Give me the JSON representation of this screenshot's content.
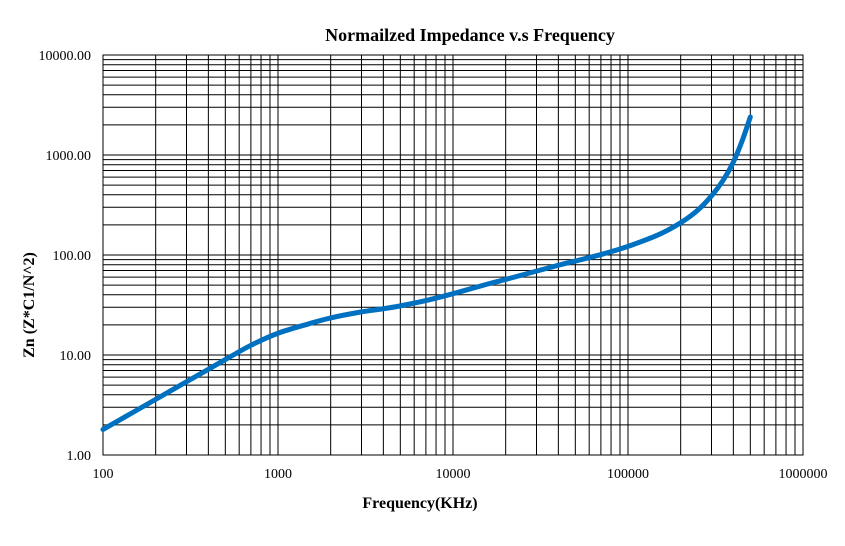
{
  "chart_data": {
    "type": "line",
    "title": "Normailzed Impedance v.s Frequency",
    "xlabel": "Frequency(KHz)",
    "ylabel": "Zn (Z*C1/N^2)",
    "x_scale": "log",
    "y_scale": "log",
    "xlim": [
      100,
      1000000
    ],
    "ylim": [
      1,
      10000
    ],
    "x_ticks": [
      "100",
      "1000",
      "10000",
      "100000",
      "1000000"
    ],
    "y_ticks": [
      "1.00",
      "10.00",
      "100.00",
      "1000.00",
      "10000.00"
    ],
    "grid": true,
    "legend": "none",
    "series": [
      {
        "color": "#0070C0",
        "points": [
          [
            100,
            1.8
          ],
          [
            150,
            2.7
          ],
          [
            200,
            3.6
          ],
          [
            300,
            5.4
          ],
          [
            400,
            7.2
          ],
          [
            500,
            9.0
          ],
          [
            700,
            12.5
          ],
          [
            1000,
            16.5
          ],
          [
            1500,
            20.5
          ],
          [
            2000,
            23.5
          ],
          [
            3000,
            27
          ],
          [
            4000,
            29
          ],
          [
            5000,
            31
          ],
          [
            7000,
            35
          ],
          [
            10000,
            41
          ],
          [
            15000,
            50
          ],
          [
            20000,
            57
          ],
          [
            30000,
            69
          ],
          [
            40000,
            79
          ],
          [
            50000,
            87
          ],
          [
            70000,
            101
          ],
          [
            100000,
            122
          ],
          [
            150000,
            160
          ],
          [
            200000,
            210
          ],
          [
            250000,
            280
          ],
          [
            300000,
            390
          ],
          [
            350000,
            560
          ],
          [
            400000,
            850
          ],
          [
            450000,
            1400
          ],
          [
            500000,
            2400
          ]
        ]
      }
    ]
  }
}
